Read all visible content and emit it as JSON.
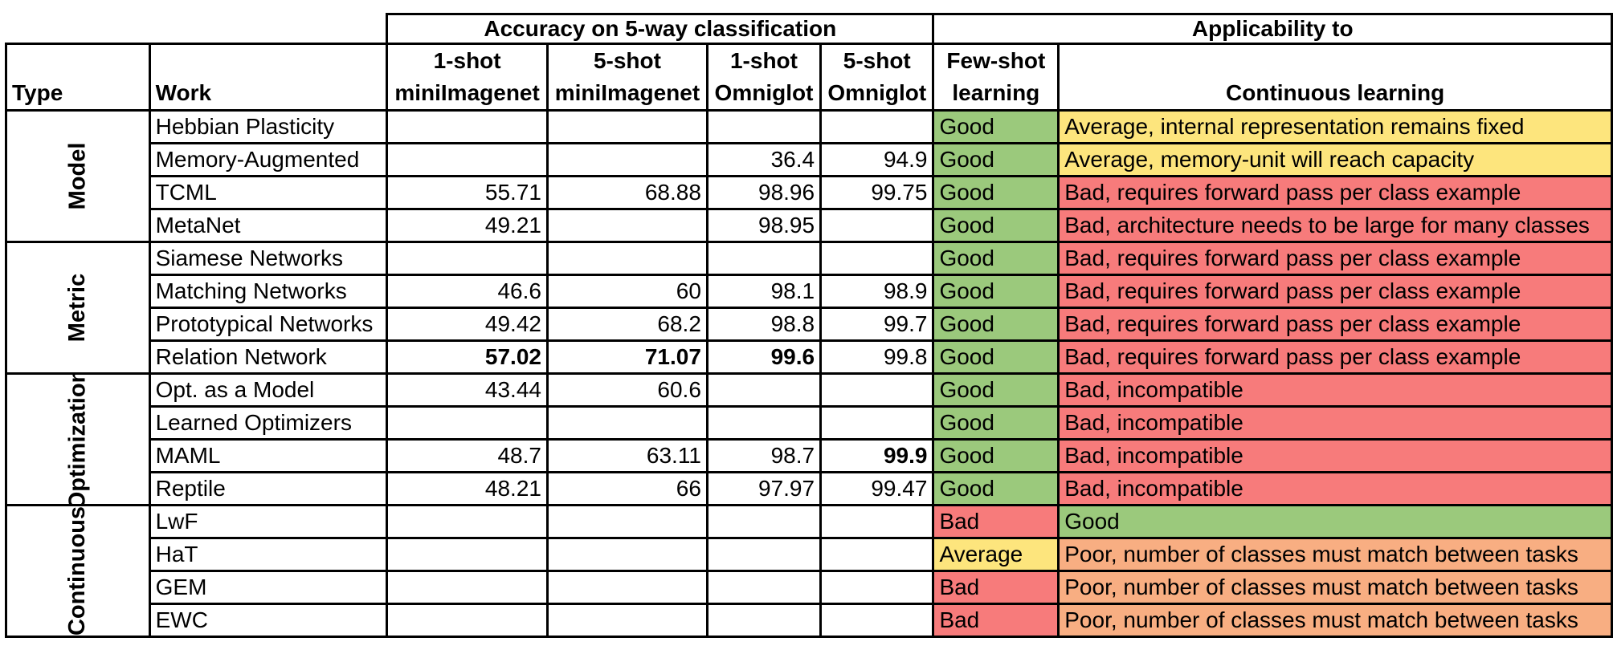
{
  "header": {
    "accuracy_group": "Accuracy on 5-way classification",
    "applicability_group": "Applicability to",
    "columns": {
      "type": "Type",
      "work": "Work",
      "c1": [
        "1-shot",
        "miniImagenet"
      ],
      "c2": [
        "5-shot",
        "miniImagenet"
      ],
      "c3": [
        "1-shot",
        "Omniglot"
      ],
      "c4": [
        "5-shot",
        "Omniglot"
      ],
      "few": [
        "Few-shot",
        "learning"
      ],
      "cont": "Continuous learning"
    }
  },
  "colors": {
    "good": "#9bc97c",
    "average": "#fde57d",
    "bad": "#f77b7b",
    "poor": "#f8ae82"
  },
  "groups": [
    {
      "type": "Model",
      "rows": [
        {
          "work": "Hebbian Plasticity",
          "v1": "",
          "v2": "",
          "v3": "",
          "v4": "",
          "few": "Good",
          "cont": "Average, internal representation remains fixed"
        },
        {
          "work": "Memory-Augmented",
          "v1": "",
          "v2": "",
          "v3": "36.4",
          "v4": "94.9",
          "few": "Good",
          "cont": "Average, memory-unit will reach capacity"
        },
        {
          "work": "TCML",
          "v1": "55.71",
          "v2": "68.88",
          "v3": "98.96",
          "v4": "99.75",
          "few": "Good",
          "cont": "Bad, requires forward pass per class example"
        },
        {
          "work": "MetaNet",
          "v1": "49.21",
          "v2": "",
          "v3": "98.95",
          "v4": "",
          "few": "Good",
          "cont": "Bad, architecture needs to be large for many classes"
        }
      ]
    },
    {
      "type": "Metric",
      "rows": [
        {
          "work": "Siamese Networks",
          "v1": "",
          "v2": "",
          "v3": "",
          "v4": "",
          "few": "Good",
          "cont": "Bad, requires forward pass per class example"
        },
        {
          "work": "Matching Networks",
          "v1": "46.6",
          "v2": "60",
          "v3": "98.1",
          "v4": "98.9",
          "few": "Good",
          "cont": "Bad, requires forward pass per class example"
        },
        {
          "work": "Prototypical Networks",
          "v1": "49.42",
          "v2": "68.2",
          "v3": "98.8",
          "v4": "99.7",
          "few": "Good",
          "cont": "Bad, requires forward pass per class example"
        },
        {
          "work": "Relation Network",
          "v1": "57.02",
          "v2": "71.07",
          "v3": "99.6",
          "v4": "99.8",
          "few": "Good",
          "cont": "Bad, requires forward pass per class example",
          "bold": [
            "v1",
            "v2",
            "v3"
          ]
        }
      ]
    },
    {
      "type": "Optimization",
      "rows": [
        {
          "work": "Opt. as a Model",
          "v1": "43.44",
          "v2": "60.6",
          "v3": "",
          "v4": "",
          "few": "Good",
          "cont": "Bad, incompatible"
        },
        {
          "work": "Learned Optimizers",
          "v1": "",
          "v2": "",
          "v3": "",
          "v4": "",
          "few": "Good",
          "cont": "Bad, incompatible"
        },
        {
          "work": "MAML",
          "v1": "48.7",
          "v2": "63.11",
          "v3": "98.7",
          "v4": "99.9",
          "few": "Good",
          "cont": "Bad, incompatible",
          "bold": [
            "v4"
          ]
        },
        {
          "work": "Reptile",
          "v1": "48.21",
          "v2": "66",
          "v3": "97.97",
          "v4": "99.47",
          "few": "Good",
          "cont": "Bad, incompatible"
        }
      ]
    },
    {
      "type": "Continuous",
      "rows": [
        {
          "work": "LwF",
          "v1": "",
          "v2": "",
          "v3": "",
          "v4": "",
          "few": "Bad",
          "cont": "Good"
        },
        {
          "work": "HaT",
          "v1": "",
          "v2": "",
          "v3": "",
          "v4": "",
          "few": "Average",
          "cont": "Poor, number of classes must match between tasks"
        },
        {
          "work": "GEM",
          "v1": "",
          "v2": "",
          "v3": "",
          "v4": "",
          "few": "Bad",
          "cont": "Poor, number of classes must match between tasks"
        },
        {
          "work": "EWC",
          "v1": "",
          "v2": "",
          "v3": "",
          "v4": "",
          "few": "Bad",
          "cont": "Poor, number of classes must match between tasks"
        }
      ]
    }
  ]
}
